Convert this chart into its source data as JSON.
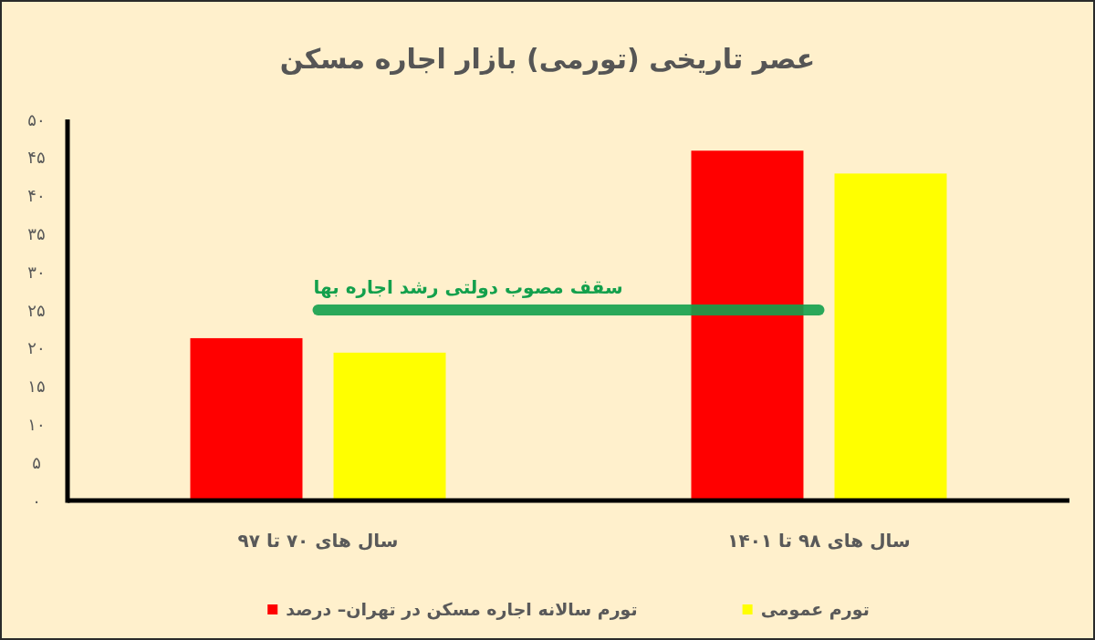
{
  "chart_data": {
    "type": "bar",
    "title": "عصر تاریخی (تورمی) بازار اجاره مسکن",
    "categories": [
      "سال های ۷۰ تا ۹۷",
      "سال های ۹۸ تا ۱۴۰۱"
    ],
    "series": [
      {
        "name": "تورم سالانه اجاره مسکن در تهران– درصد",
        "color": "#ff0000",
        "values": [
          21.3,
          45.9
        ]
      },
      {
        "name": "تورم عمومی",
        "color": "#ffff00",
        "values": [
          19.4,
          42.9
        ]
      },
      {
        "type": "line",
        "name": "سقف مصوب دولتی رشد اجاره بها",
        "color": "#13a04c",
        "values": [
          25,
          25
        ]
      }
    ],
    "ylim": [
      0,
      50
    ],
    "yticks": [
      {
        "value": 0,
        "label": "۰"
      },
      {
        "value": 5,
        "label": "۵"
      },
      {
        "value": 10,
        "label": "۱۰"
      },
      {
        "value": 15,
        "label": "۱۵"
      },
      {
        "value": 20,
        "label": "۲۰"
      },
      {
        "value": 25,
        "label": "۲۵"
      },
      {
        "value": 30,
        "label": "۳۰"
      },
      {
        "value": 35,
        "label": "۳۵"
      },
      {
        "value": 40,
        "label": "۴۰"
      },
      {
        "value": 45,
        "label": "۴۵"
      },
      {
        "value": 50,
        "label": "۵۰"
      }
    ],
    "legend": "bottom"
  }
}
